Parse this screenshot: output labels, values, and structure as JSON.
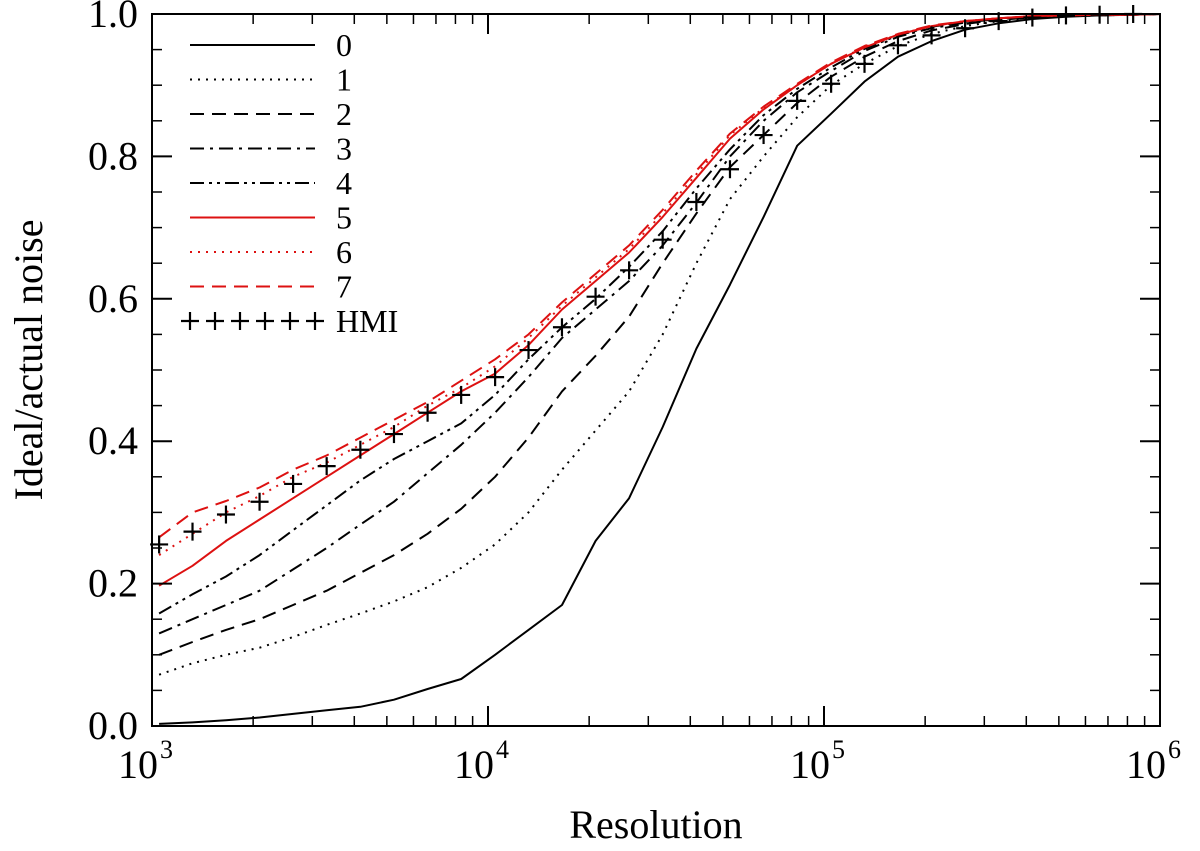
{
  "chart_data": {
    "type": "line",
    "xlabel": "Resolution",
    "ylabel": "Ideal/actual noise",
    "xscale": "log",
    "xlim": [
      1000,
      1000000
    ],
    "ylim": [
      0.0,
      1.0
    ],
    "x_ticks": [
      {
        "base": "10",
        "exp": "3",
        "value": 1000
      },
      {
        "base": "10",
        "exp": "4",
        "value": 10000
      },
      {
        "base": "10",
        "exp": "5",
        "value": 100000
      },
      {
        "base": "10",
        "exp": "6",
        "value": 1000000
      }
    ],
    "y_ticks": [
      {
        "label": "0.0",
        "value": 0.0
      },
      {
        "label": "0.2",
        "value": 0.2
      },
      {
        "label": "0.4",
        "value": 0.4
      },
      {
        "label": "0.6",
        "value": 0.6
      },
      {
        "label": "0.8",
        "value": 0.8
      },
      {
        "label": "1.0",
        "value": 1.0
      }
    ],
    "grid": false,
    "legend_position": "top-left",
    "x": [
      1050,
      1320,
      1660,
      2090,
      2630,
      3310,
      4170,
      5250,
      6610,
      8320,
      10500,
      13200,
      16600,
      20900,
      26300,
      33100,
      41700,
      52500,
      66100,
      83200,
      105000,
      132000,
      166000,
      209000,
      263000,
      331000,
      417000,
      525000,
      661000,
      832000,
      1000000
    ],
    "series": [
      {
        "name": "0",
        "color": "#000000",
        "dash": "solid",
        "values": [
          0.003,
          0.005,
          0.008,
          0.012,
          0.017,
          0.022,
          0.027,
          0.037,
          0.052,
          0.066,
          0.1,
          0.135,
          0.17,
          0.26,
          0.32,
          0.42,
          0.53,
          0.62,
          0.715,
          0.815,
          0.86,
          0.905,
          0.94,
          0.962,
          0.978,
          0.987,
          0.993,
          0.996,
          0.998,
          0.999,
          1.0
        ]
      },
      {
        "name": "1",
        "color": "#000000",
        "dash": "dot",
        "values": [
          0.072,
          0.088,
          0.1,
          0.11,
          0.125,
          0.142,
          0.158,
          0.175,
          0.195,
          0.222,
          0.255,
          0.3,
          0.36,
          0.415,
          0.47,
          0.55,
          0.65,
          0.74,
          0.8,
          0.855,
          0.9,
          0.93,
          0.955,
          0.972,
          0.983,
          0.99,
          0.994,
          0.997,
          0.998,
          0.999,
          1.0
        ]
      },
      {
        "name": "2",
        "color": "#000000",
        "dash": "dash",
        "values": [
          0.1,
          0.118,
          0.135,
          0.15,
          0.17,
          0.19,
          0.215,
          0.24,
          0.27,
          0.305,
          0.35,
          0.405,
          0.47,
          0.52,
          0.575,
          0.65,
          0.72,
          0.785,
          0.83,
          0.875,
          0.912,
          0.94,
          0.962,
          0.977,
          0.986,
          0.992,
          0.995,
          0.997,
          0.998,
          0.999,
          1.0
        ]
      },
      {
        "name": "3",
        "color": "#000000",
        "dash": "dashdot",
        "values": [
          0.13,
          0.15,
          0.17,
          0.19,
          0.22,
          0.25,
          0.283,
          0.315,
          0.355,
          0.395,
          0.44,
          0.49,
          0.545,
          0.585,
          0.625,
          0.675,
          0.735,
          0.8,
          0.85,
          0.89,
          0.92,
          0.948,
          0.968,
          0.98,
          0.988,
          0.993,
          0.996,
          0.998,
          0.999,
          0.999,
          1.0
        ]
      },
      {
        "name": "4",
        "color": "#000000",
        "dash": "dashdotdot",
        "values": [
          0.158,
          0.185,
          0.21,
          0.24,
          0.275,
          0.31,
          0.345,
          0.375,
          0.4,
          0.425,
          0.465,
          0.515,
          0.56,
          0.6,
          0.645,
          0.695,
          0.755,
          0.81,
          0.858,
          0.895,
          0.925,
          0.951,
          0.97,
          0.982,
          0.989,
          0.994,
          0.996,
          0.998,
          0.999,
          0.999,
          1.0
        ]
      },
      {
        "name": "5",
        "color": "#dd1111",
        "dash": "solid",
        "values": [
          0.197,
          0.225,
          0.26,
          0.29,
          0.32,
          0.35,
          0.38,
          0.41,
          0.44,
          0.47,
          0.495,
          0.535,
          0.585,
          0.625,
          0.665,
          0.715,
          0.77,
          0.825,
          0.866,
          0.9,
          0.93,
          0.953,
          0.971,
          0.983,
          0.99,
          0.994,
          0.997,
          0.998,
          0.999,
          0.999,
          1.0
        ]
      },
      {
        "name": "6",
        "color": "#dd1111",
        "dash": "dot",
        "values": [
          0.24,
          0.27,
          0.3,
          0.323,
          0.35,
          0.37,
          0.395,
          0.42,
          0.45,
          0.475,
          0.505,
          0.545,
          0.59,
          0.63,
          0.67,
          0.72,
          0.775,
          0.83,
          0.868,
          0.9,
          0.93,
          0.954,
          0.971,
          0.983,
          0.99,
          0.994,
          0.997,
          0.998,
          0.999,
          0.999,
          1.0
        ]
      },
      {
        "name": "7",
        "color": "#dd1111",
        "dash": "dash",
        "values": [
          0.265,
          0.3,
          0.316,
          0.335,
          0.36,
          0.38,
          0.405,
          0.43,
          0.455,
          0.485,
          0.515,
          0.55,
          0.595,
          0.635,
          0.675,
          0.725,
          0.78,
          0.832,
          0.87,
          0.902,
          0.932,
          0.955,
          0.972,
          0.984,
          0.99,
          0.994,
          0.997,
          0.998,
          0.999,
          0.999,
          1.0
        ]
      },
      {
        "name": "HMI",
        "color": "#000000",
        "dash": "none",
        "marker": "plus",
        "x": [
          1050,
          1320,
          1660,
          2090,
          2630,
          3310,
          4170,
          5250,
          6610,
          8320,
          10500,
          13200,
          16600,
          20900,
          26300,
          33100,
          41700,
          52500,
          66100,
          83200,
          105000,
          132000,
          166000,
          209000,
          263000,
          331000,
          417000,
          525000,
          661000,
          832000
        ],
        "values": [
          0.255,
          0.273,
          0.297,
          0.315,
          0.34,
          0.365,
          0.388,
          0.41,
          0.44,
          0.465,
          0.49,
          0.528,
          0.56,
          0.603,
          0.64,
          0.683,
          0.736,
          0.782,
          0.83,
          0.878,
          0.902,
          0.93,
          0.956,
          0.97,
          0.98,
          0.99,
          0.995,
          0.998,
          0.999,
          1.0
        ]
      }
    ]
  }
}
